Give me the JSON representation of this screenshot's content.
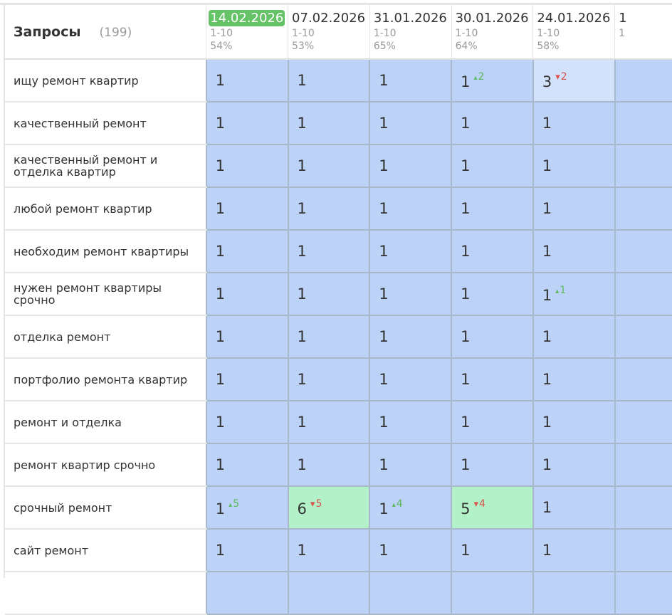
{
  "header": {
    "title": "Запросы",
    "count": "(199)"
  },
  "dates": [
    {
      "date": "14.02.2026",
      "range": "1-10",
      "percent": "54%",
      "current": true
    },
    {
      "date": "07.02.2026",
      "range": "1-10",
      "percent": "53%"
    },
    {
      "date": "31.01.2026",
      "range": "1-10",
      "percent": "65%"
    },
    {
      "date": "30.01.2026",
      "range": "1-10",
      "percent": "64%"
    },
    {
      "date": "24.01.2026",
      "range": "1-10",
      "percent": "58%"
    },
    {
      "date": "1",
      "range": "1",
      "percent": ""
    }
  ],
  "colors": {
    "cell": "#bcd3f7",
    "cell_light": "#d3e2fb",
    "cell_green": "#b3f2c9",
    "current_date": "#66c267",
    "up": "#5cb85c",
    "down": "#d9534f"
  },
  "rows": [
    {
      "query": "ищу ремонт квартир",
      "cells": [
        {
          "v": "1"
        },
        {
          "v": "1"
        },
        {
          "v": "1"
        },
        {
          "v": "1",
          "d": "2",
          "dir": "up"
        },
        {
          "v": "3",
          "d": "2",
          "dir": "down",
          "bg": "light"
        },
        {
          "v": ""
        }
      ]
    },
    {
      "query": "качественный ремонт",
      "cells": [
        {
          "v": "1"
        },
        {
          "v": "1"
        },
        {
          "v": "1"
        },
        {
          "v": "1"
        },
        {
          "v": "1"
        },
        {
          "v": ""
        }
      ]
    },
    {
      "query": "качественный ремонт и отделка квартир",
      "cells": [
        {
          "v": "1"
        },
        {
          "v": "1"
        },
        {
          "v": "1"
        },
        {
          "v": "1"
        },
        {
          "v": "1"
        },
        {
          "v": ""
        }
      ]
    },
    {
      "query": "любой ремонт квартир",
      "cells": [
        {
          "v": "1"
        },
        {
          "v": "1"
        },
        {
          "v": "1"
        },
        {
          "v": "1"
        },
        {
          "v": "1"
        },
        {
          "v": ""
        }
      ]
    },
    {
      "query": "необходим ремонт квартиры",
      "cells": [
        {
          "v": "1"
        },
        {
          "v": "1"
        },
        {
          "v": "1"
        },
        {
          "v": "1"
        },
        {
          "v": "1"
        },
        {
          "v": ""
        }
      ]
    },
    {
      "query": "нужен ремонт квартиры срочно",
      "cells": [
        {
          "v": "1"
        },
        {
          "v": "1"
        },
        {
          "v": "1"
        },
        {
          "v": "1"
        },
        {
          "v": "1",
          "d": "1",
          "dir": "up"
        },
        {
          "v": ""
        }
      ]
    },
    {
      "query": "отделка ремонт",
      "cells": [
        {
          "v": "1"
        },
        {
          "v": "1"
        },
        {
          "v": "1"
        },
        {
          "v": "1"
        },
        {
          "v": "1"
        },
        {
          "v": ""
        }
      ]
    },
    {
      "query": "портфолио ремонта квартир",
      "cells": [
        {
          "v": "1"
        },
        {
          "v": "1"
        },
        {
          "v": "1"
        },
        {
          "v": "1"
        },
        {
          "v": "1"
        },
        {
          "v": ""
        }
      ]
    },
    {
      "query": "ремонт и отделка",
      "cells": [
        {
          "v": "1"
        },
        {
          "v": "1"
        },
        {
          "v": "1"
        },
        {
          "v": "1"
        },
        {
          "v": "1"
        },
        {
          "v": ""
        }
      ]
    },
    {
      "query": "ремонт квартир срочно",
      "cells": [
        {
          "v": "1"
        },
        {
          "v": "1"
        },
        {
          "v": "1"
        },
        {
          "v": "1"
        },
        {
          "v": "1"
        },
        {
          "v": ""
        }
      ]
    },
    {
      "query": "срочный ремонт",
      "cells": [
        {
          "v": "1",
          "d": "5",
          "dir": "up"
        },
        {
          "v": "6",
          "d": "5",
          "dir": "down",
          "bg": "green"
        },
        {
          "v": "1",
          "d": "4",
          "dir": "up"
        },
        {
          "v": "5",
          "d": "4",
          "dir": "down",
          "bg": "green"
        },
        {
          "v": "1"
        },
        {
          "v": ""
        }
      ]
    },
    {
      "query": "сайт ремонт",
      "cells": [
        {
          "v": "1"
        },
        {
          "v": "1"
        },
        {
          "v": "1"
        },
        {
          "v": "1"
        },
        {
          "v": "1"
        },
        {
          "v": ""
        }
      ]
    },
    {
      "query": "",
      "cells": [
        {
          "v": ""
        },
        {
          "v": ""
        },
        {
          "v": ""
        },
        {
          "v": ""
        },
        {
          "v": ""
        },
        {
          "v": ""
        }
      ]
    }
  ]
}
